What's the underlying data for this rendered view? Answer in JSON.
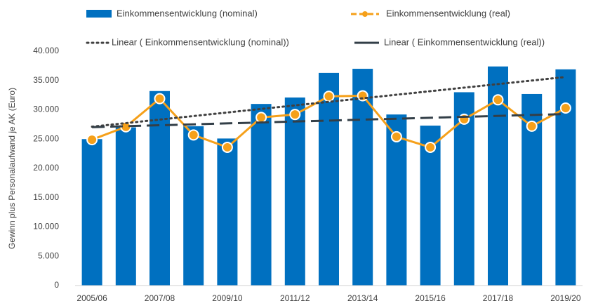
{
  "chart_data": {
    "type": "bar_line",
    "y_label": "Gewinn plus Personalaufwand je AK (Euro)",
    "categories": [
      "2005/06",
      null,
      "2007/08",
      null,
      "2009/10",
      null,
      "2011/12",
      null,
      "2013/14",
      null,
      "2015/16",
      null,
      "2017/18",
      null,
      "2019/20"
    ],
    "series": [
      {
        "name": "Einkommensentwicklung (nominal)",
        "type": "bar",
        "color": "#0070c0",
        "values": [
          25000,
          27000,
          33200,
          27200,
          25100,
          31000,
          32100,
          36300,
          37000,
          29200,
          27300,
          33000,
          37400,
          32700,
          36900
        ]
      },
      {
        "name": "Einkommensentwicklung (real)",
        "type": "line",
        "color": "#f5a01a",
        "values": [
          24900,
          27100,
          31900,
          25700,
          23600,
          28700,
          29200,
          32300,
          32400,
          25400,
          23600,
          28400,
          31700,
          27200,
          30300
        ]
      }
    ],
    "trendlines": [
      {
        "name": "Linear ( Einkommensentwicklung (nominal))",
        "series": 0,
        "color": "#404040",
        "style": "dotted"
      },
      {
        "name": "Linear ( Einkommensentwicklung (real))",
        "series": 1,
        "color": "#333f48",
        "style": "dashed"
      }
    ],
    "ylim": [
      0,
      40000
    ],
    "yticks": [
      {
        "value": 0,
        "label": "0"
      },
      {
        "value": 5000,
        "label": "5.000"
      },
      {
        "value": 10000,
        "label": "10.000"
      },
      {
        "value": 15000,
        "label": "15.000"
      },
      {
        "value": 20000,
        "label": "20.000"
      },
      {
        "value": 25000,
        "label": "25.000"
      },
      {
        "value": 30000,
        "label": "30.000"
      },
      {
        "value": 35000,
        "label": "35.000"
      },
      {
        "value": 40000,
        "label": "40.000"
      }
    ],
    "grid": false
  }
}
